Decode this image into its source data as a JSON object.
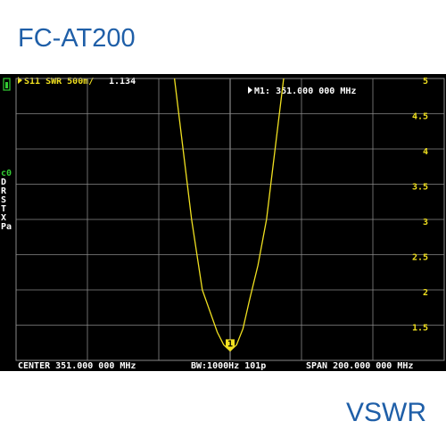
{
  "title": "FC-AT200",
  "caption": "VSWR",
  "chart_data": {
    "type": "line",
    "trace_label": "S11 SWR 500m/",
    "marker_label": "1",
    "marker_readout": "M1: 351.000 000 MHz",
    "side_labels": [
      "c0",
      "D",
      "R",
      "S",
      "T",
      "X",
      "Pa"
    ],
    "footer_center": "CENTER  351.000 000 MHz",
    "footer_bw": "BW:1000Hz 101p",
    "footer_span": "SPAN  200.000 000 MHz",
    "x": [
      325,
      329,
      333,
      338,
      345,
      348,
      351,
      354,
      357,
      360,
      364,
      368,
      372,
      376
    ],
    "series": [
      {
        "color": "#f0e020",
        "values": [
          5,
          4,
          3,
          2,
          1.4,
          1.22,
          1.134,
          1.22,
          1.45,
          1.85,
          2.35,
          3,
          4,
          5
        ]
      }
    ],
    "xlim": [
      251,
      451
    ],
    "ylim": [
      1,
      5
    ],
    "yticks": [
      1.5,
      2,
      2.5,
      3,
      3.5,
      4,
      4.5,
      5
    ],
    "grid": true
  }
}
